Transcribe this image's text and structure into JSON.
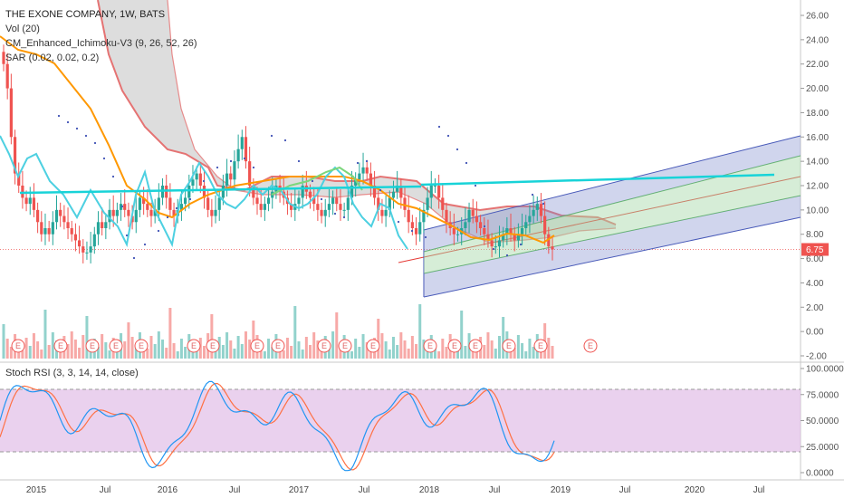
{
  "legend": {
    "symbol": "THE EXONE COMPANY, 1W, BATS",
    "vol": "Vol (20)",
    "ichimoku": "CM_Enhanced_Ichimoku-V3 (9, 26, 52, 26)",
    "sar": "SAR (0.02, 0.02, 0.2)"
  },
  "rsi_title": "Stoch RSI (3, 3, 14, 14, close)",
  "last_price": "6.75",
  "earnings_marker": "E",
  "colors": {
    "up": "#26a69a",
    "down": "#ef5350",
    "kijun": "#ff9800",
    "tenkan": "#4dd0e1",
    "cloud": "#e57373",
    "sar": "#3f51b5",
    "trend": "#18d3d8",
    "rsi_k": "#2196f3",
    "rsi_d": "#ff7043",
    "rsi_band": "#e1bee7"
  },
  "chart_data": [
    {
      "type": "candlestick",
      "title": "THE EXONE COMPANY, 1W, BATS",
      "y_axis": {
        "ticks": [
          "26.00",
          "24.00",
          "22.00",
          "20.00",
          "18.00",
          "16.00",
          "14.00",
          "12.00",
          "10.00",
          "8.00",
          "6.00",
          "4.00",
          "2.00",
          "0.00",
          "-2.00"
        ],
        "range": [
          -2,
          27
        ]
      },
      "x_axis": {
        "ticks": [
          "2015",
          "Jul",
          "2016",
          "Jul",
          "2017",
          "Jul",
          "2018",
          "Jul",
          "2019",
          "Jul",
          "2020",
          "Jul"
        ]
      },
      "last_value": 6.75,
      "weekly_closes": [
        22,
        20,
        16,
        13,
        12,
        11,
        10.5,
        11,
        10,
        9,
        8,
        8.5,
        8,
        9,
        10,
        9.5,
        9,
        8.5,
        8,
        7.5,
        7,
        6.5,
        6.5,
        7,
        8,
        9,
        8.5,
        9,
        10,
        9.5,
        10,
        10.5,
        10,
        9.5,
        9,
        10,
        11,
        10.5,
        10,
        9.5,
        10,
        11,
        12,
        11,
        10,
        9.5,
        10,
        10.5,
        11,
        12,
        12.5,
        13,
        12,
        11,
        10,
        9.5,
        10,
        11,
        12,
        13,
        12.5,
        14,
        15,
        16,
        14,
        12,
        11,
        10.5,
        10,
        10.5,
        11,
        11.5,
        12,
        11.5,
        11,
        10.5,
        10,
        10.5,
        11,
        12,
        11.5,
        11,
        10.5,
        10,
        9.5,
        10,
        10.5,
        11,
        10.5,
        10,
        10,
        11,
        12,
        12.5,
        13,
        13.5,
        13,
        12,
        11,
        10,
        9.5,
        10,
        11,
        11.5,
        12,
        11,
        10,
        9,
        8.5,
        8,
        9,
        10,
        11,
        12,
        12,
        11,
        10,
        9,
        8.5,
        8,
        8,
        8.5,
        9,
        10,
        9.5,
        9,
        8.5,
        8,
        7.5,
        7,
        7,
        7.5,
        8,
        8.5,
        8,
        7.5,
        8,
        8.5,
        9,
        9.5,
        10,
        10.5,
        9.5,
        8,
        7,
        6.75
      ]
    },
    {
      "type": "bar",
      "title": "Vol (20)"
    },
    {
      "type": "line",
      "title": "Stoch RSI (3, 3, 14, 14, close)",
      "y_axis": {
        "ticks": [
          "100.0000",
          "75.0000",
          "50.0000",
          "25.0000",
          "0.0000"
        ],
        "range": [
          0,
          100
        ]
      },
      "bands": [
        20,
        80
      ]
    }
  ]
}
